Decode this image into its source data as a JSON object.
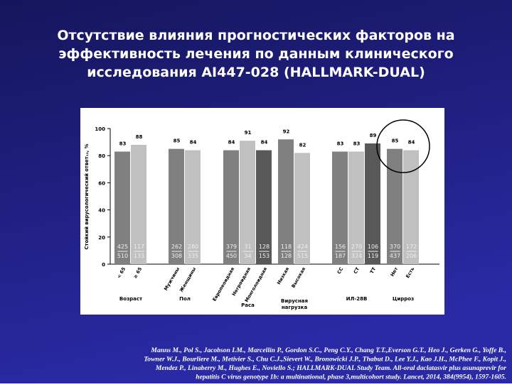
{
  "title_lines": [
    "Отсутствие влияния прогностических факторов на",
    "эффективность лечения по данным клинического",
    "исследования AI447-028 (HALLMARK-DUAL)"
  ],
  "chart_data": {
    "type": "bar",
    "ylabel": "Стойкий вирусологический ответ₁₂, %",
    "ylim": [
      0,
      100
    ],
    "yticks": [
      0,
      20,
      40,
      60,
      80,
      100
    ],
    "groups": [
      {
        "name": "Возраст",
        "categories": [
          "< 65",
          "≥ 65"
        ],
        "values": [
          83,
          88
        ],
        "n": [
          425,
          117
        ],
        "N": [
          510,
          133
        ],
        "colors": [
          "#808080",
          "#c0c0c0"
        ]
      },
      {
        "name": "Пол",
        "categories": [
          "Мужчины",
          "Женщины"
        ],
        "values": [
          85,
          84
        ],
        "n": [
          262,
          280
        ],
        "N": [
          308,
          335
        ],
        "colors": [
          "#808080",
          "#c0c0c0"
        ]
      },
      {
        "name": "Раса",
        "categories": [
          "Европеоидная",
          "Негроидная",
          "Монголоидная"
        ],
        "values": [
          84,
          91,
          84
        ],
        "n": [
          379,
          31,
          128
        ],
        "N": [
          450,
          34,
          153
        ],
        "colors": [
          "#808080",
          "#c0c0c0",
          "#595959"
        ]
      },
      {
        "name": "Вирусная нагрузка",
        "categories": [
          "Низкая",
          "Высокая"
        ],
        "values": [
          92,
          82
        ],
        "n": [
          118,
          424
        ],
        "N": [
          128,
          515
        ],
        "colors": [
          "#808080",
          "#c0c0c0"
        ]
      },
      {
        "name": "ИЛ-28В",
        "categories": [
          "CC",
          "CT",
          "TT"
        ],
        "values": [
          83,
          83,
          89
        ],
        "n": [
          156,
          270,
          106
        ],
        "N": [
          187,
          324,
          119
        ],
        "colors": [
          "#808080",
          "#c0c0c0",
          "#595959"
        ]
      },
      {
        "name": "Цирроз",
        "categories": [
          "Нет",
          "Есть"
        ],
        "values": [
          85,
          84
        ],
        "n": [
          370,
          172
        ],
        "N": [
          437,
          206
        ],
        "colors": [
          "#808080",
          "#c0c0c0"
        ]
      }
    ]
  },
  "citation_lines": [
    "Manns M., Pol S., Jacobson I.M., Marcellin P., Gordon S.C., Peng C.Y., Chang T.T.,Everson G.T., Heo J., Gerken G., Yoffe B.,",
    "Towner W.J., Bourliere M., Metivier S., Chu C.J.,Sievert W., Bronowicki J.P., Thabut D., Lee Y.J., Kao J.H., McPhee F., Kopit J.,",
    "Mendez P., Linaberry M., Hughes E., Noviello S.; HALLMARK-DUAL Study Team. All-oral daclatasvir plus asunaprevir for",
    "hepatitis C virus genotype 1b: a multinational, phase 3,multicohort study. Lancet, 2014, 384(9954), 1597-1605."
  ]
}
